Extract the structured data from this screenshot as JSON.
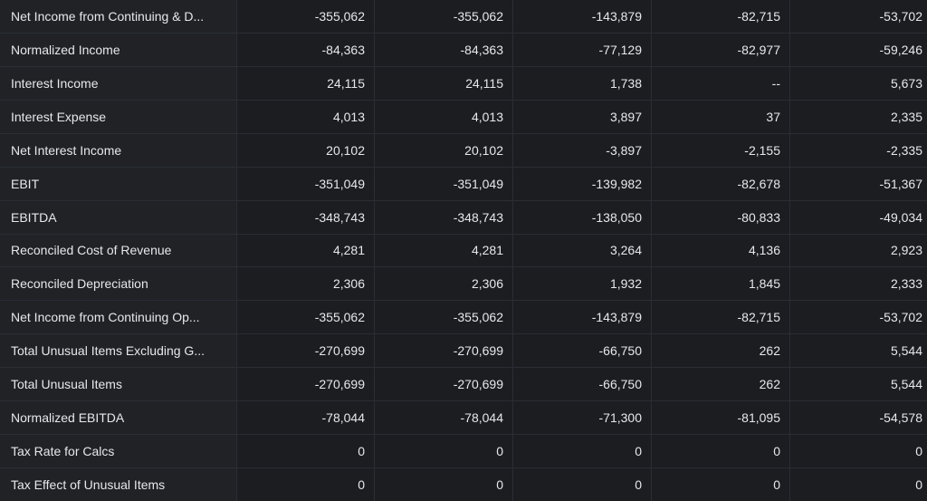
{
  "table": {
    "rows": [
      {
        "label": "Net Income from Continuing & D...",
        "values": [
          "-355,062",
          "-355,062",
          "-143,879",
          "-82,715",
          "-53,702"
        ]
      },
      {
        "label": "Normalized Income",
        "values": [
          "-84,363",
          "-84,363",
          "-77,129",
          "-82,977",
          "-59,246"
        ]
      },
      {
        "label": "Interest Income",
        "values": [
          "24,115",
          "24,115",
          "1,738",
          "--",
          "5,673"
        ]
      },
      {
        "label": "Interest Expense",
        "values": [
          "4,013",
          "4,013",
          "3,897",
          "37",
          "2,335"
        ]
      },
      {
        "label": "Net Interest Income",
        "values": [
          "20,102",
          "20,102",
          "-3,897",
          "-2,155",
          "-2,335"
        ]
      },
      {
        "label": "EBIT",
        "values": [
          "-351,049",
          "-351,049",
          "-139,982",
          "-82,678",
          "-51,367"
        ]
      },
      {
        "label": "EBITDA",
        "values": [
          "-348,743",
          "-348,743",
          "-138,050",
          "-80,833",
          "-49,034"
        ]
      },
      {
        "label": "Reconciled Cost of Revenue",
        "values": [
          "4,281",
          "4,281",
          "3,264",
          "4,136",
          "2,923"
        ]
      },
      {
        "label": "Reconciled Depreciation",
        "values": [
          "2,306",
          "2,306",
          "1,932",
          "1,845",
          "2,333"
        ]
      },
      {
        "label": "Net Income from Continuing Op...",
        "values": [
          "-355,062",
          "-355,062",
          "-143,879",
          "-82,715",
          "-53,702"
        ]
      },
      {
        "label": "Total Unusual Items Excluding G...",
        "values": [
          "-270,699",
          "-270,699",
          "-66,750",
          "262",
          "5,544"
        ]
      },
      {
        "label": "Total Unusual Items",
        "values": [
          "-270,699",
          "-270,699",
          "-66,750",
          "262",
          "5,544"
        ]
      },
      {
        "label": "Normalized EBITDA",
        "values": [
          "-78,044",
          "-78,044",
          "-71,300",
          "-81,095",
          "-54,578"
        ]
      },
      {
        "label": "Tax Rate for Calcs",
        "values": [
          "0",
          "0",
          "0",
          "0",
          "0"
        ]
      },
      {
        "label": "Tax Effect of Unusual Items",
        "values": [
          "0",
          "0",
          "0",
          "0",
          "0"
        ]
      }
    ]
  }
}
